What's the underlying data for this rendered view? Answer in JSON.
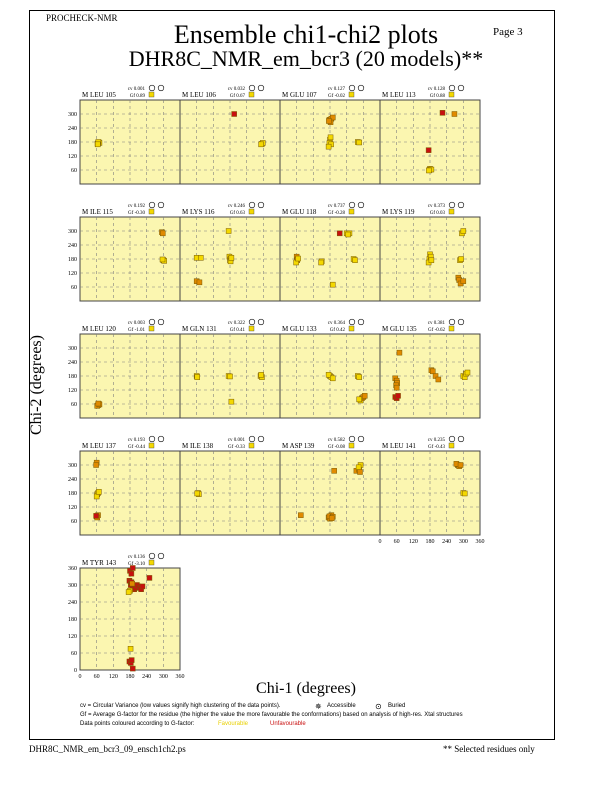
{
  "header": {
    "program": "PROCHECK-NMR",
    "page": "Page  3",
    "title": "Ensemble chi1-chi2 plots",
    "subtitle": "DHR8C_NMR_em_bcr3 (20 models)**"
  },
  "colors": {
    "panel_bg": "#fbf6b0",
    "favourable": "#f4d800",
    "mid": "#e08a00",
    "unfavourable": "#c81010",
    "grid": "#7f7f7f"
  },
  "legend": {
    "line1": "cv = Circular Variance (low values signify high clustering of the data points).",
    "accessible": "Accessible",
    "buried": "Buried",
    "line2": "Gf = Average G-factor for the residue (the higher the value the more favourable the conformations) based on analysis of high-res. Xtal structures",
    "line3": "Data points coloured according to G-factor:",
    "favourable": "Favourable",
    "unfavourable": "Unfavourable"
  },
  "footer": {
    "filename": "DHR8C_NMR_em_bcr3_09_ensch1ch2.ps",
    "note": "** Selected residues only"
  },
  "chart_data": {
    "type": "scatter",
    "xlabel": "Chi-1 (degrees)",
    "ylabel": "Chi-2 (degrees)",
    "xlim": [
      0,
      360
    ],
    "ylim": [
      0,
      360
    ],
    "xticks": [
      "0",
      "60",
      "120",
      "180",
      "240",
      "300",
      "360"
    ],
    "yticks": [
      "60",
      "120",
      "180",
      "240",
      "300"
    ],
    "yticks_full": [
      "0",
      "60",
      "120",
      "180",
      "240",
      "300",
      "360"
    ],
    "grid": true,
    "panels": [
      {
        "residue": "M LEU 105",
        "cv": "cv 0.001",
        "gf": "Gf 0.89",
        "points": [
          [
            65,
            175,
            "y"
          ],
          [
            68,
            178,
            "y"
          ],
          [
            63,
            172,
            "y"
          ],
          [
            70,
            176,
            "y"
          ],
          [
            66,
            180,
            "y"
          ],
          [
            64,
            170,
            "y"
          ]
        ]
      },
      {
        "residue": "M LEU 106",
        "cv": "cv 0.032",
        "gf": "Gf 0.67",
        "points": [
          [
            195,
            300,
            "r"
          ],
          [
            295,
            172,
            "y"
          ],
          [
            298,
            176,
            "y"
          ],
          [
            292,
            170,
            "y"
          ]
        ]
      },
      {
        "residue": "M GLU 107",
        "cv": "cv 0.127",
        "gf": "Gf -0.02",
        "points": [
          [
            178,
            275,
            "o"
          ],
          [
            185,
            280,
            "o"
          ],
          [
            182,
            265,
            "o"
          ],
          [
            190,
            285,
            "o"
          ],
          [
            176,
            270,
            "o"
          ],
          [
            180,
            190,
            "y"
          ],
          [
            178,
            175,
            "y"
          ],
          [
            184,
            170,
            "y"
          ],
          [
            175,
            160,
            "y"
          ],
          [
            182,
            200,
            "y"
          ],
          [
            280,
            180,
            "y"
          ],
          [
            285,
            178,
            "y"
          ]
        ]
      },
      {
        "residue": "M LEU 113",
        "cv": "cv 0.128",
        "gf": "Gf 0.88",
        "points": [
          [
            225,
            305,
            "r"
          ],
          [
            268,
            300,
            "o"
          ],
          [
            175,
            145,
            "r"
          ],
          [
            180,
            65,
            "y"
          ],
          [
            178,
            60,
            "y"
          ],
          [
            185,
            62,
            "y"
          ],
          [
            176,
            58,
            "y"
          ]
        ]
      },
      {
        "residue": "M ILE 115",
        "cv": "cv 0.192",
        "gf": "Gf -0.30",
        "points": [
          [
            295,
            295,
            "o"
          ],
          [
            298,
            290,
            "o"
          ],
          [
            300,
            175,
            "y"
          ],
          [
            303,
            172,
            "y"
          ],
          [
            297,
            178,
            "y"
          ]
        ]
      },
      {
        "residue": "M LYS 116",
        "cv": "cv 0.246",
        "gf": "Gf 0.63",
        "points": [
          [
            60,
            185,
            "y"
          ],
          [
            75,
            185,
            "y"
          ],
          [
            178,
            190,
            "y"
          ],
          [
            180,
            175,
            "y"
          ],
          [
            182,
            180,
            "y"
          ],
          [
            175,
            300,
            "y"
          ],
          [
            182,
            170,
            "y"
          ],
          [
            60,
            85,
            "o"
          ],
          [
            70,
            80,
            "o"
          ],
          [
            185,
            185,
            "y"
          ]
        ]
      },
      {
        "residue": "M GLU 118",
        "cv": "cv 0.737",
        "gf": "Gf -0.28",
        "points": [
          [
            60,
            190,
            "o"
          ],
          [
            62,
            175,
            "o"
          ],
          [
            58,
            165,
            "y"
          ],
          [
            65,
            182,
            "y"
          ],
          [
            150,
            170,
            "y"
          ],
          [
            148,
            165,
            "y"
          ],
          [
            215,
            290,
            "r"
          ],
          [
            240,
            290,
            "y"
          ],
          [
            250,
            290,
            "y"
          ],
          [
            245,
            285,
            "y"
          ],
          [
            265,
            180,
            "y"
          ],
          [
            270,
            175,
            "y"
          ],
          [
            190,
            70,
            "y"
          ]
        ]
      },
      {
        "residue": "M LYS 119",
        "cv": "cv 0.373",
        "gf": "Gf 0.03",
        "points": [
          [
            180,
            200,
            "y"
          ],
          [
            178,
            180,
            "y"
          ],
          [
            183,
            190,
            "y"
          ],
          [
            175,
            165,
            "y"
          ],
          [
            185,
            175,
            "y"
          ],
          [
            288,
            175,
            "y"
          ],
          [
            292,
            180,
            "y"
          ],
          [
            295,
            290,
            "y"
          ],
          [
            300,
            300,
            "y"
          ],
          [
            282,
            100,
            "o"
          ],
          [
            285,
            90,
            "o"
          ],
          [
            290,
            75,
            "o"
          ],
          [
            300,
            85,
            "o"
          ]
        ]
      },
      {
        "residue": "M LEU 120",
        "cv": "cv 0.003",
        "gf": "Gf -1.01",
        "points": [
          [
            65,
            55,
            "o"
          ],
          [
            68,
            60,
            "o"
          ],
          [
            62,
            52,
            "o"
          ],
          [
            70,
            58,
            "o"
          ],
          [
            66,
            62,
            "o"
          ]
        ]
      },
      {
        "residue": "M GLN 131",
        "cv": "cv 0.322",
        "gf": "Gf 0.41",
        "points": [
          [
            60,
            180,
            "y"
          ],
          [
            62,
            175,
            "y"
          ],
          [
            175,
            180,
            "y"
          ],
          [
            180,
            178,
            "y"
          ],
          [
            185,
            70,
            "y"
          ],
          [
            290,
            180,
            "y"
          ],
          [
            295,
            175,
            "y"
          ],
          [
            292,
            185,
            "y"
          ]
        ]
      },
      {
        "residue": "M GLU 133",
        "cv": "cv 0.364",
        "gf": "Gf 0.42",
        "points": [
          [
            180,
            180,
            "y"
          ],
          [
            185,
            175,
            "y"
          ],
          [
            175,
            185,
            "y"
          ],
          [
            190,
            170,
            "y"
          ],
          [
            280,
            180,
            "y"
          ],
          [
            285,
            175,
            "y"
          ],
          [
            290,
            75,
            "y"
          ],
          [
            295,
            85,
            "o"
          ],
          [
            300,
            90,
            "o"
          ],
          [
            305,
            95,
            "o"
          ],
          [
            285,
            80,
            "y"
          ]
        ]
      },
      {
        "residue": "M GLU 135",
        "cv": "cv 0.381",
        "gf": "Gf -0.62",
        "points": [
          [
            55,
            170,
            "o"
          ],
          [
            60,
            160,
            "o"
          ],
          [
            62,
            150,
            "o"
          ],
          [
            58,
            140,
            "o"
          ],
          [
            60,
            130,
            "o"
          ],
          [
            55,
            90,
            "r"
          ],
          [
            60,
            85,
            "r"
          ],
          [
            65,
            95,
            "r"
          ],
          [
            70,
            280,
            "o"
          ],
          [
            185,
            205,
            "o"
          ],
          [
            190,
            200,
            "o"
          ],
          [
            200,
            180,
            "o"
          ],
          [
            210,
            165,
            "o"
          ],
          [
            300,
            180,
            "y"
          ],
          [
            305,
            175,
            "y"
          ],
          [
            310,
            190,
            "y"
          ],
          [
            315,
            195,
            "y"
          ]
        ]
      },
      {
        "residue": "M LEU 137",
        "cv": "cv 0.193",
        "gf": "Gf -0.44",
        "points": [
          [
            60,
            310,
            "o"
          ],
          [
            58,
            300,
            "o"
          ],
          [
            62,
            175,
            "y"
          ],
          [
            65,
            180,
            "y"
          ],
          [
            60,
            165,
            "y"
          ],
          [
            68,
            185,
            "y"
          ],
          [
            60,
            80,
            "r"
          ],
          [
            65,
            85,
            "o"
          ],
          [
            62,
            75,
            "o"
          ],
          [
            58,
            82,
            "r"
          ]
        ]
      },
      {
        "residue": "M ILE 138",
        "cv": "cv 0.001",
        "gf": "Gf -0.33",
        "points": [
          [
            65,
            180,
            "y"
          ],
          [
            68,
            175,
            "y"
          ],
          [
            62,
            178,
            "y"
          ]
        ]
      },
      {
        "residue": "M ASP 139",
        "cv": "cv 0.582",
        "gf": "Gf -0.08",
        "points": [
          [
            75,
            85,
            "o"
          ],
          [
            175,
            75,
            "o"
          ],
          [
            185,
            85,
            "o"
          ],
          [
            180,
            70,
            "o"
          ],
          [
            178,
            80,
            "o"
          ],
          [
            190,
            78,
            "o"
          ],
          [
            186,
            72,
            "o"
          ],
          [
            275,
            275,
            "o"
          ],
          [
            285,
            280,
            "o"
          ],
          [
            290,
            300,
            "y"
          ],
          [
            283,
            290,
            "y"
          ],
          [
            288,
            270,
            "o"
          ],
          [
            195,
            275,
            "o"
          ]
        ]
      },
      {
        "residue": "M LEU 141",
        "cv": "cv 0.235",
        "gf": "Gf -0.43",
        "points": [
          [
            280,
            300,
            "o"
          ],
          [
            285,
            295,
            "o"
          ],
          [
            275,
            305,
            "o"
          ],
          [
            290,
            300,
            "o"
          ],
          [
            300,
            180,
            "y"
          ],
          [
            305,
            178,
            "y"
          ]
        ]
      },
      {
        "residue": "M TYR 143",
        "cv": "cv 0.136",
        "gf": "Gf -3.10",
        "points": [
          [
            180,
            350,
            "r"
          ],
          [
            185,
            340,
            "r"
          ],
          [
            190,
            360,
            "r"
          ],
          [
            178,
            315,
            "r"
          ],
          [
            183,
            300,
            "r"
          ],
          [
            190,
            295,
            "r"
          ],
          [
            195,
            285,
            "r"
          ],
          [
            200,
            290,
            "r"
          ],
          [
            205,
            300,
            "r"
          ],
          [
            210,
            295,
            "r"
          ],
          [
            215,
            290,
            "r"
          ],
          [
            220,
            285,
            "r"
          ],
          [
            225,
            295,
            "r"
          ],
          [
            185,
            310,
            "r"
          ],
          [
            188,
            305,
            "o"
          ],
          [
            180,
            280,
            "y"
          ],
          [
            175,
            275,
            "y"
          ],
          [
            182,
            75,
            "y"
          ],
          [
            178,
            30,
            "r"
          ],
          [
            183,
            25,
            "r"
          ],
          [
            186,
            35,
            "r"
          ],
          [
            190,
            5,
            "r"
          ],
          [
            250,
            325,
            "r"
          ]
        ]
      }
    ]
  }
}
